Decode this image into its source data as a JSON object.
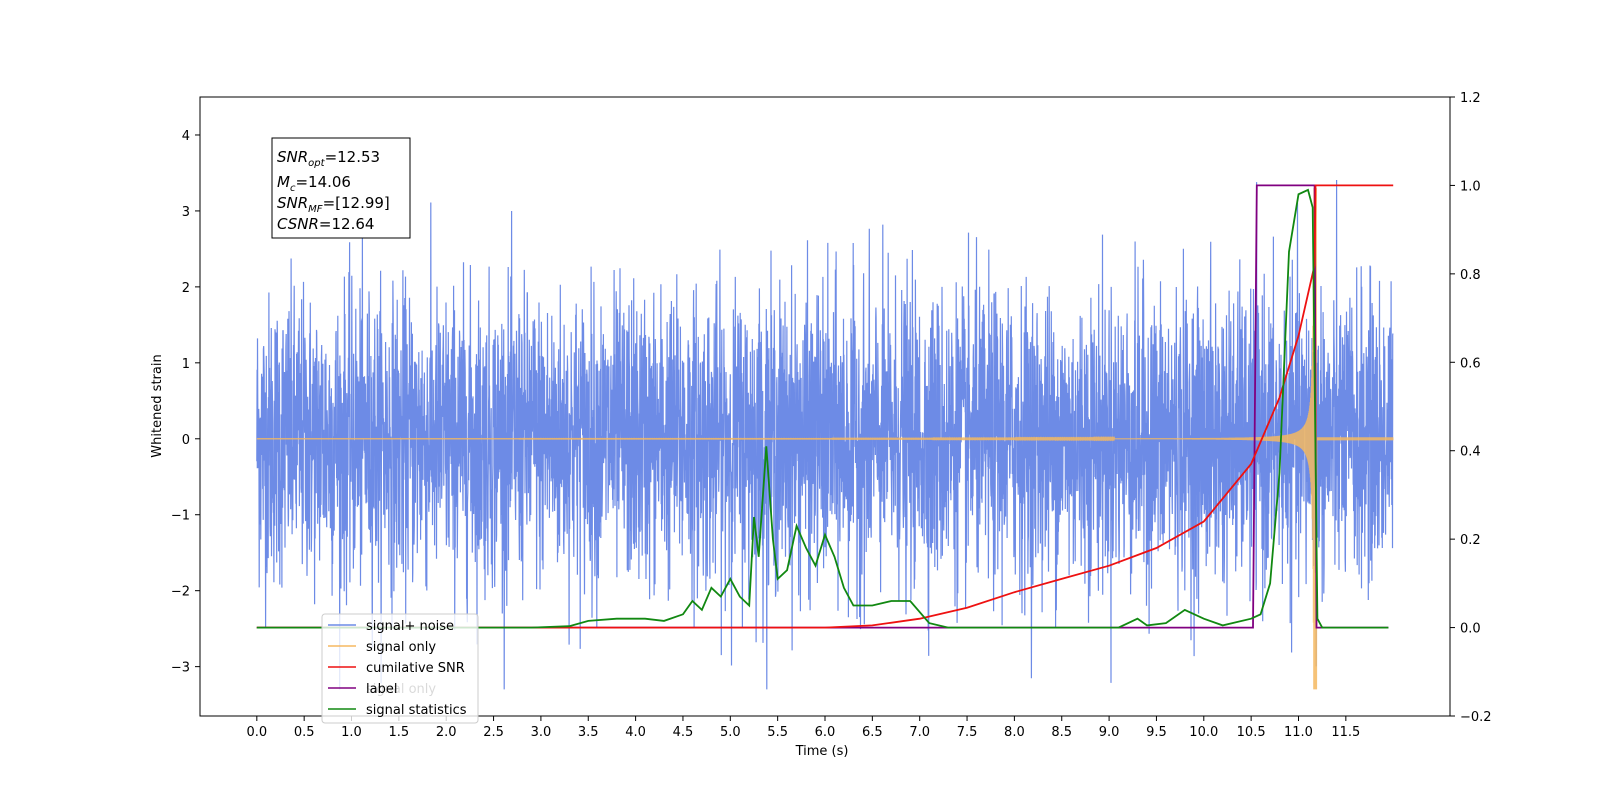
{
  "chart_data": {
    "type": "line",
    "xlabel": "Time (s)",
    "ylabel": "Whitened strain",
    "xlim": [
      -0.6,
      12.6
    ],
    "ylim": [
      -3.65,
      4.5
    ],
    "ylim_right": [
      -0.2,
      1.2
    ],
    "x_ticks": [
      "0.0",
      "0.5",
      "1.0",
      "1.5",
      "2.0",
      "2.5",
      "3.0",
      "3.5",
      "4.0",
      "4.5",
      "5.0",
      "5.5",
      "6.0",
      "6.5",
      "7.0",
      "7.5",
      "8.0",
      "8.5",
      "9.0",
      "9.5",
      "10.0",
      "10.5",
      "11.0",
      "11.5"
    ],
    "y_ticks_left": [
      "−3",
      "−2",
      "−1",
      "0",
      "1",
      "2",
      "3",
      "4"
    ],
    "y_ticks_right": [
      "−0.2",
      "0.0",
      "0.2",
      "0.4",
      "0.6",
      "0.8",
      "1.0",
      "1.2"
    ],
    "annotation": {
      "snr_opt": {
        "sym": "SNR",
        "sub": "opt",
        "value": "=12.53"
      },
      "mc": {
        "sym": "M",
        "sub": "c",
        "value": "=14.06"
      },
      "snr_mf": {
        "sym": "SNR",
        "sub": "MF",
        "value": "=[12.99]"
      },
      "csnr": {
        "sym": "CSNR",
        "sub": "",
        "value": "=12.64"
      }
    },
    "legend_position": "lower-left",
    "series": [
      {
        "name": "signal+ noise",
        "color": "#6d8be6",
        "axis": "left",
        "noise_std": 0.95,
        "duration": 12.0
      },
      {
        "name": "signal only",
        "color": "#f5b860",
        "axis": "left",
        "merger_time": 11.17
      },
      {
        "name": "cumilative SNR",
        "color": "#ee1111",
        "axis": "right",
        "points": [
          [
            0,
            0
          ],
          [
            6.0,
            0
          ],
          [
            6.5,
            0.005
          ],
          [
            7.0,
            0.02
          ],
          [
            7.5,
            0.045
          ],
          [
            8.0,
            0.08
          ],
          [
            8.5,
            0.11
          ],
          [
            9.0,
            0.14
          ],
          [
            9.5,
            0.18
          ],
          [
            10.0,
            0.24
          ],
          [
            10.5,
            0.37
          ],
          [
            10.8,
            0.52
          ],
          [
            11.0,
            0.66
          ],
          [
            11.17,
            0.82
          ],
          [
            11.18,
            1.0
          ],
          [
            12.0,
            1.0
          ]
        ]
      },
      {
        "name": "label",
        "color": "#800080",
        "axis": "right",
        "points": [
          [
            0,
            0
          ],
          [
            10.52,
            0
          ],
          [
            10.56,
            1.0
          ],
          [
            11.17,
            1.0
          ],
          [
            11.19,
            0
          ],
          [
            11.95,
            0
          ]
        ]
      },
      {
        "name": "signal only",
        "color": "#1a8a1a",
        "axis": "left",
        "value": 0
      },
      {
        "name": "signal statistics",
        "color": "#118811",
        "axis": "right",
        "points": [
          [
            0,
            0
          ],
          [
            2.9,
            0
          ],
          [
            3.3,
            0.003
          ],
          [
            3.5,
            0.015
          ],
          [
            3.8,
            0.02
          ],
          [
            4.1,
            0.02
          ],
          [
            4.3,
            0.015
          ],
          [
            4.5,
            0.03
          ],
          [
            4.6,
            0.06
          ],
          [
            4.7,
            0.04
          ],
          [
            4.8,
            0.09
          ],
          [
            4.9,
            0.07
          ],
          [
            5.0,
            0.11
          ],
          [
            5.1,
            0.07
          ],
          [
            5.2,
            0.05
          ],
          [
            5.25,
            0.25
          ],
          [
            5.3,
            0.16
          ],
          [
            5.38,
            0.41
          ],
          [
            5.45,
            0.2
          ],
          [
            5.5,
            0.11
          ],
          [
            5.6,
            0.13
          ],
          [
            5.7,
            0.23
          ],
          [
            5.8,
            0.18
          ],
          [
            5.9,
            0.14
          ],
          [
            6.0,
            0.21
          ],
          [
            6.1,
            0.16
          ],
          [
            6.2,
            0.09
          ],
          [
            6.3,
            0.05
          ],
          [
            6.5,
            0.05
          ],
          [
            6.7,
            0.06
          ],
          [
            6.9,
            0.06
          ],
          [
            7.1,
            0.01
          ],
          [
            7.3,
            0.0
          ],
          [
            9.1,
            0.0
          ],
          [
            9.3,
            0.02
          ],
          [
            9.4,
            0.005
          ],
          [
            9.6,
            0.01
          ],
          [
            9.8,
            0.04
          ],
          [
            10.0,
            0.02
          ],
          [
            10.2,
            0.005
          ],
          [
            10.5,
            0.02
          ],
          [
            10.6,
            0.03
          ],
          [
            10.7,
            0.1
          ],
          [
            10.8,
            0.35
          ],
          [
            10.9,
            0.85
          ],
          [
            11.0,
            0.98
          ],
          [
            11.1,
            0.99
          ],
          [
            11.15,
            0.95
          ],
          [
            11.2,
            0.02
          ],
          [
            11.25,
            0.0
          ],
          [
            11.95,
            0.0
          ]
        ]
      }
    ]
  }
}
